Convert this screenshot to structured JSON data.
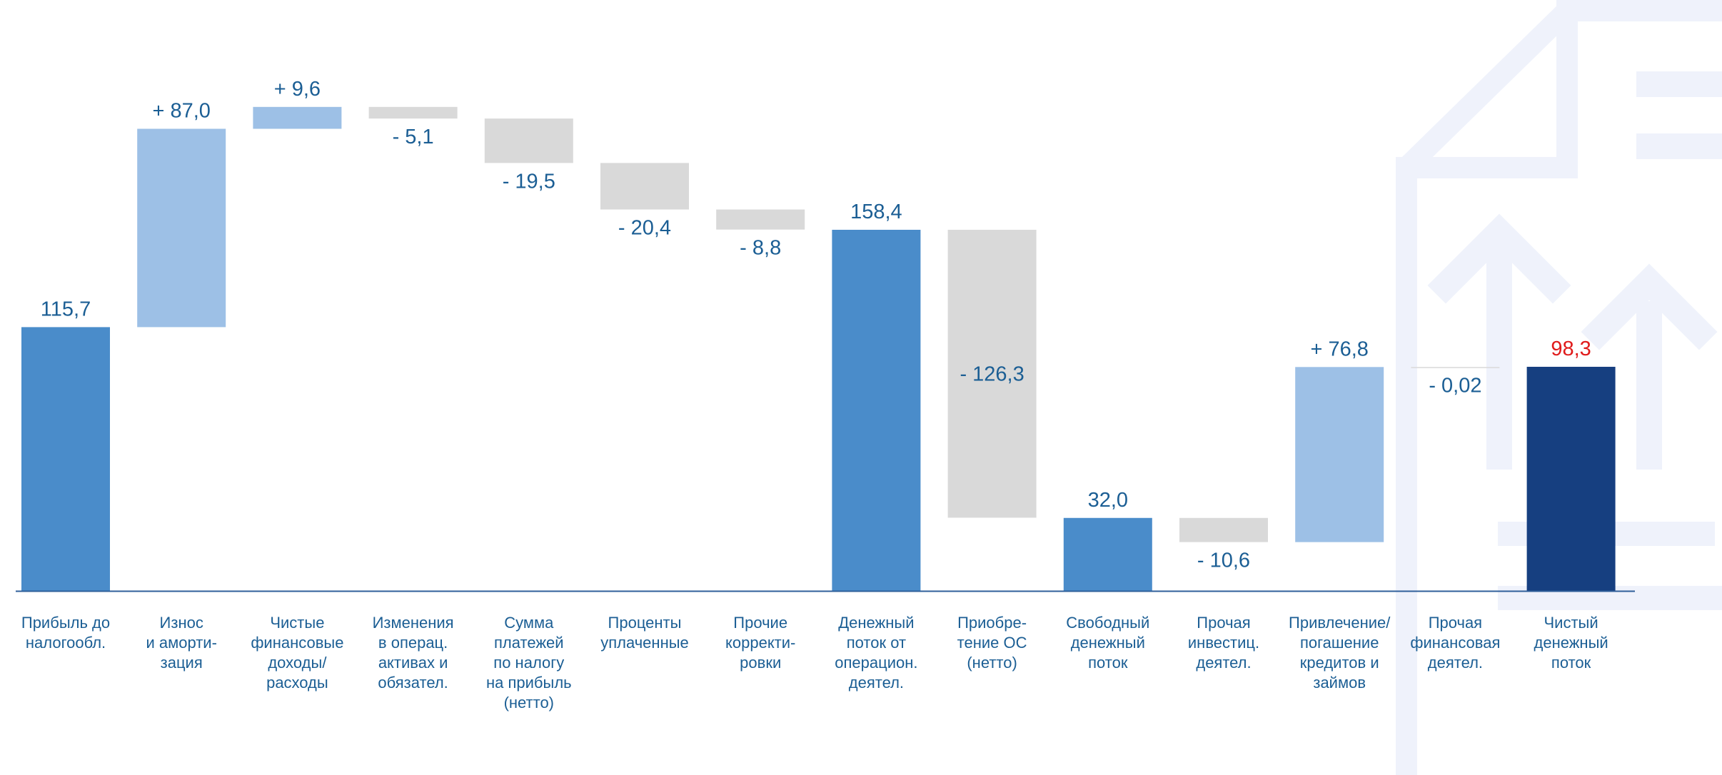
{
  "colors": {
    "total": "#4a8cca",
    "increase": "#9dc0e6",
    "decrease": "#d9d9d9",
    "final_total": "#163f80",
    "label_text": "#1b5e94",
    "highlight_label": "#e01b1b",
    "axis": "#2f5f9a",
    "background_icon": "#eff2fb",
    "category_text": "#1b5e94"
  },
  "background_icon": "document-arrows-up-icon",
  "chart_data": {
    "type": "waterfall",
    "title": "",
    "xlabel": "",
    "ylabel": "",
    "ylim": [
      0,
      230
    ],
    "grid": false,
    "legend": "none",
    "categories": [
      [
        "Прибыль до",
        "налогообл."
      ],
      [
        "Износ",
        "и аморти-",
        "зация"
      ],
      [
        "Чистые",
        "финансовые",
        "доходы/",
        "расходы"
      ],
      [
        "Изменения",
        "в операц.",
        "активах и",
        "обязател."
      ],
      [
        "Сумма",
        "платежей",
        "по налогу",
        "на прибыль",
        "(нетто)"
      ],
      [
        "Проценты",
        "уплаченные"
      ],
      [
        "Прочие",
        "корректи-",
        "ровки"
      ],
      [
        "Денежный",
        "поток от",
        "операцион.",
        "деятел."
      ],
      [
        "Приобре-",
        "тение ОС",
        "(нетто)"
      ],
      [
        "Свободный",
        "денежный",
        "поток"
      ],
      [
        "Прочая",
        "инвестиц.",
        "деятел."
      ],
      [
        "Привлечение/",
        "погашение",
        "кредитов и",
        "займов"
      ],
      [
        "Прочая",
        "финансовая",
        "деятел."
      ],
      [
        "Чистый",
        "денежный",
        "поток"
      ]
    ],
    "values": [
      115.7,
      87.0,
      9.6,
      -5.1,
      -19.5,
      -20.4,
      -8.8,
      158.4,
      -126.3,
      32.0,
      -10.6,
      76.8,
      -0.02,
      98.3
    ],
    "kinds": [
      "total",
      "increase",
      "increase",
      "decrease",
      "decrease",
      "decrease",
      "decrease",
      "total",
      "decrease",
      "total",
      "decrease",
      "increase",
      "decrease",
      "final_total"
    ],
    "value_labels": [
      "115,7",
      "+ 87,0",
      "+ 9,6",
      "- 5,1",
      "- 19,5",
      "- 20,4",
      "- 8,8",
      "158,4",
      "- 126,3",
      "32,0",
      "- 10,6",
      "+ 76,8",
      "- 0,02",
      "98,3"
    ]
  }
}
